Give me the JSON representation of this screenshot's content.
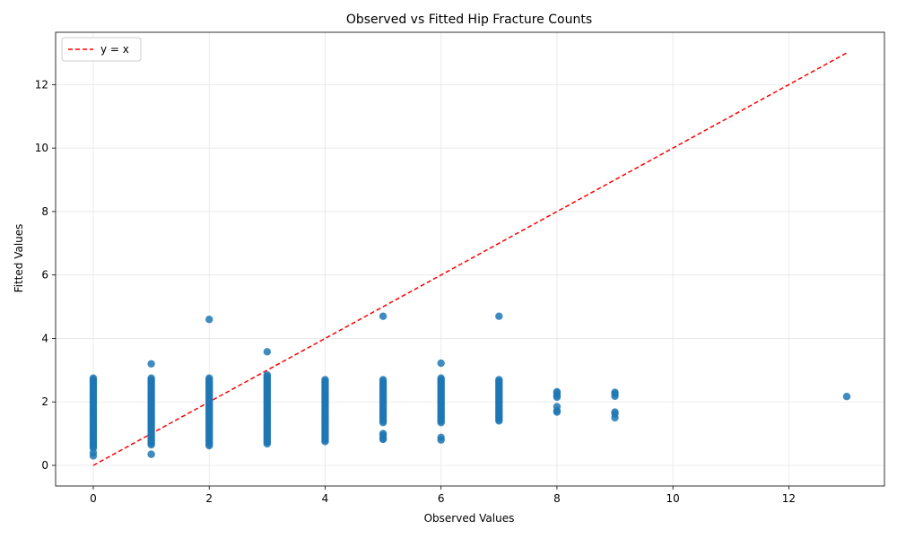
{
  "chart_data": {
    "type": "scatter",
    "title": "Observed vs Fitted Hip Fracture Counts",
    "xlabel": "Observed Values",
    "ylabel": "Fitted Values",
    "xlim": [
      -0.65,
      13.65
    ],
    "ylim": [
      -0.65,
      13.65
    ],
    "xticks": [
      0,
      2,
      4,
      6,
      8,
      10,
      12
    ],
    "yticks": [
      0,
      2,
      4,
      6,
      8,
      10,
      12
    ],
    "grid": true,
    "legend_position": "top-left",
    "colors": {
      "points": "#1f77b4",
      "reference_line": "#ff0000",
      "grid": "#e6e6e6"
    },
    "reference_line": {
      "name": "y = x",
      "x": [
        0,
        13
      ],
      "y": [
        0,
        13
      ],
      "style": "dashed"
    },
    "series": [
      {
        "type": "scatter",
        "columns": [
          {
            "x": 0,
            "range": [
              0.55,
              2.75
            ],
            "extra_y": [
              0.4,
              0.3
            ]
          },
          {
            "x": 1,
            "range": [
              0.65,
              2.75
            ],
            "extra_y": [
              0.35,
              3.2
            ]
          },
          {
            "x": 2,
            "range": [
              0.62,
              2.75
            ],
            "extra_y": [
              4.6
            ]
          },
          {
            "x": 3,
            "range": [
              0.68,
              2.85
            ],
            "extra_y": [
              3.58
            ]
          },
          {
            "x": 4,
            "range": [
              0.75,
              2.7
            ],
            "extra_y": []
          },
          {
            "x": 5,
            "range": [
              1.35,
              2.7
            ],
            "extra_y": [
              0.82,
              0.85,
              0.95,
              1.0,
              4.7
            ]
          },
          {
            "x": 6,
            "range": [
              1.35,
              2.75
            ],
            "extra_y": [
              0.8,
              0.88,
              3.22
            ]
          },
          {
            "x": 7,
            "range": [
              1.4,
              2.7
            ],
            "extra_y": [
              4.7
            ]
          },
          {
            "x": 8,
            "range": null,
            "extra_y": [
              1.68,
              1.72,
              1.85,
              2.15,
              2.2,
              2.28,
              2.32
            ]
          },
          {
            "x": 9,
            "range": null,
            "extra_y": [
              1.5,
              1.62,
              1.68,
              2.18,
              2.25,
              2.3
            ]
          },
          {
            "x": 13,
            "range": null,
            "extra_y": [
              2.17
            ]
          }
        ]
      }
    ]
  }
}
